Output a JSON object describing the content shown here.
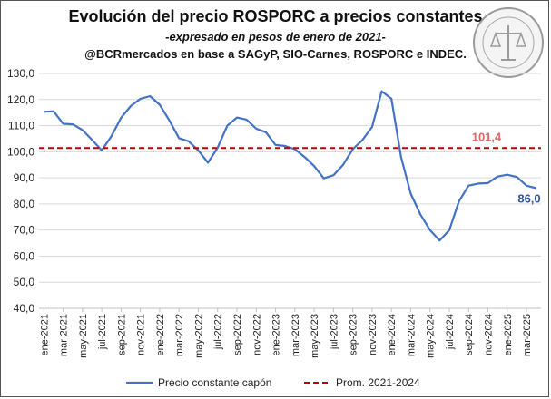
{
  "chart_data": {
    "type": "line",
    "title": "Evolución del precio ROSPORC  a precios constantes",
    "subtitle": "-expresado en pesos de enero de 2021-",
    "source": "@BCRmercados en base a SAGyP, SIO-Carnes, ROSPORC e INDEC.",
    "ylim": [
      40,
      130
    ],
    "yticks": [
      "40,0",
      "50,0",
      "60,0",
      "70,0",
      "80,0",
      "90,0",
      "100,0",
      "110,0",
      "120,0",
      "130,0"
    ],
    "grid": true,
    "legend_position": "bottom",
    "x_tick_labels": [
      "ene-2021",
      "mar-2021",
      "may-2021",
      "jul-2021",
      "sep-2021",
      "nov-2021",
      "ene-2022",
      "mar-2022",
      "may-2022",
      "jul-2022",
      "sep-2022",
      "nov-2022",
      "ene-2023",
      "mar-2023",
      "may-2023",
      "jul-2023",
      "sep-2023",
      "nov-2023",
      "ene-2024",
      "mar-2024",
      "may-2024",
      "jul-2024",
      "sep-2024",
      "nov-2024",
      "ene-2025",
      "mar-2025"
    ],
    "x": [
      "ene-2021",
      "feb-2021",
      "mar-2021",
      "abr-2021",
      "may-2021",
      "jun-2021",
      "jul-2021",
      "ago-2021",
      "sep-2021",
      "oct-2021",
      "nov-2021",
      "dic-2021",
      "ene-2022",
      "feb-2022",
      "mar-2022",
      "abr-2022",
      "may-2022",
      "jun-2022",
      "jul-2022",
      "ago-2022",
      "sep-2022",
      "oct-2022",
      "nov-2022",
      "dic-2022",
      "ene-2023",
      "feb-2023",
      "mar-2023",
      "abr-2023",
      "may-2023",
      "jun-2023",
      "jul-2023",
      "ago-2023",
      "sep-2023",
      "oct-2023",
      "nov-2023",
      "dic-2023",
      "ene-2024",
      "feb-2024",
      "mar-2024",
      "abr-2024",
      "may-2024",
      "jun-2024",
      "jul-2024",
      "ago-2024",
      "sep-2024",
      "oct-2024",
      "nov-2024",
      "dic-2024",
      "ene-2025",
      "feb-2025",
      "mar-2025",
      "abr-2025"
    ],
    "series": [
      {
        "name": "Precio constante capón",
        "color": "#4472C4",
        "values": [
          115.3,
          115.5,
          110.7,
          110.5,
          108.3,
          104.5,
          100.5,
          106.0,
          113.0,
          117.5,
          120.3,
          121.3,
          118.0,
          112.0,
          105.2,
          104.0,
          100.5,
          95.8,
          101.5,
          110.0,
          113.1,
          112.3,
          108.8,
          107.5,
          102.6,
          102.2,
          101.0,
          98.0,
          94.5,
          89.8,
          91.0,
          95.0,
          101.0,
          104.5,
          109.5,
          123.2,
          120.3,
          98.0,
          84.0,
          76.0,
          70.0,
          66.0,
          70.0,
          81.0,
          87.0,
          87.8,
          88.0,
          90.5,
          91.2,
          90.3,
          87.0,
          86.0
        ]
      },
      {
        "name": "Prom. 2021-2024",
        "color": "#C00000",
        "constant": 101.4
      }
    ],
    "annotations": [
      {
        "text": "101,4",
        "color": "#E06666"
      },
      {
        "text": "86,0",
        "color": "#2F5597"
      }
    ]
  }
}
